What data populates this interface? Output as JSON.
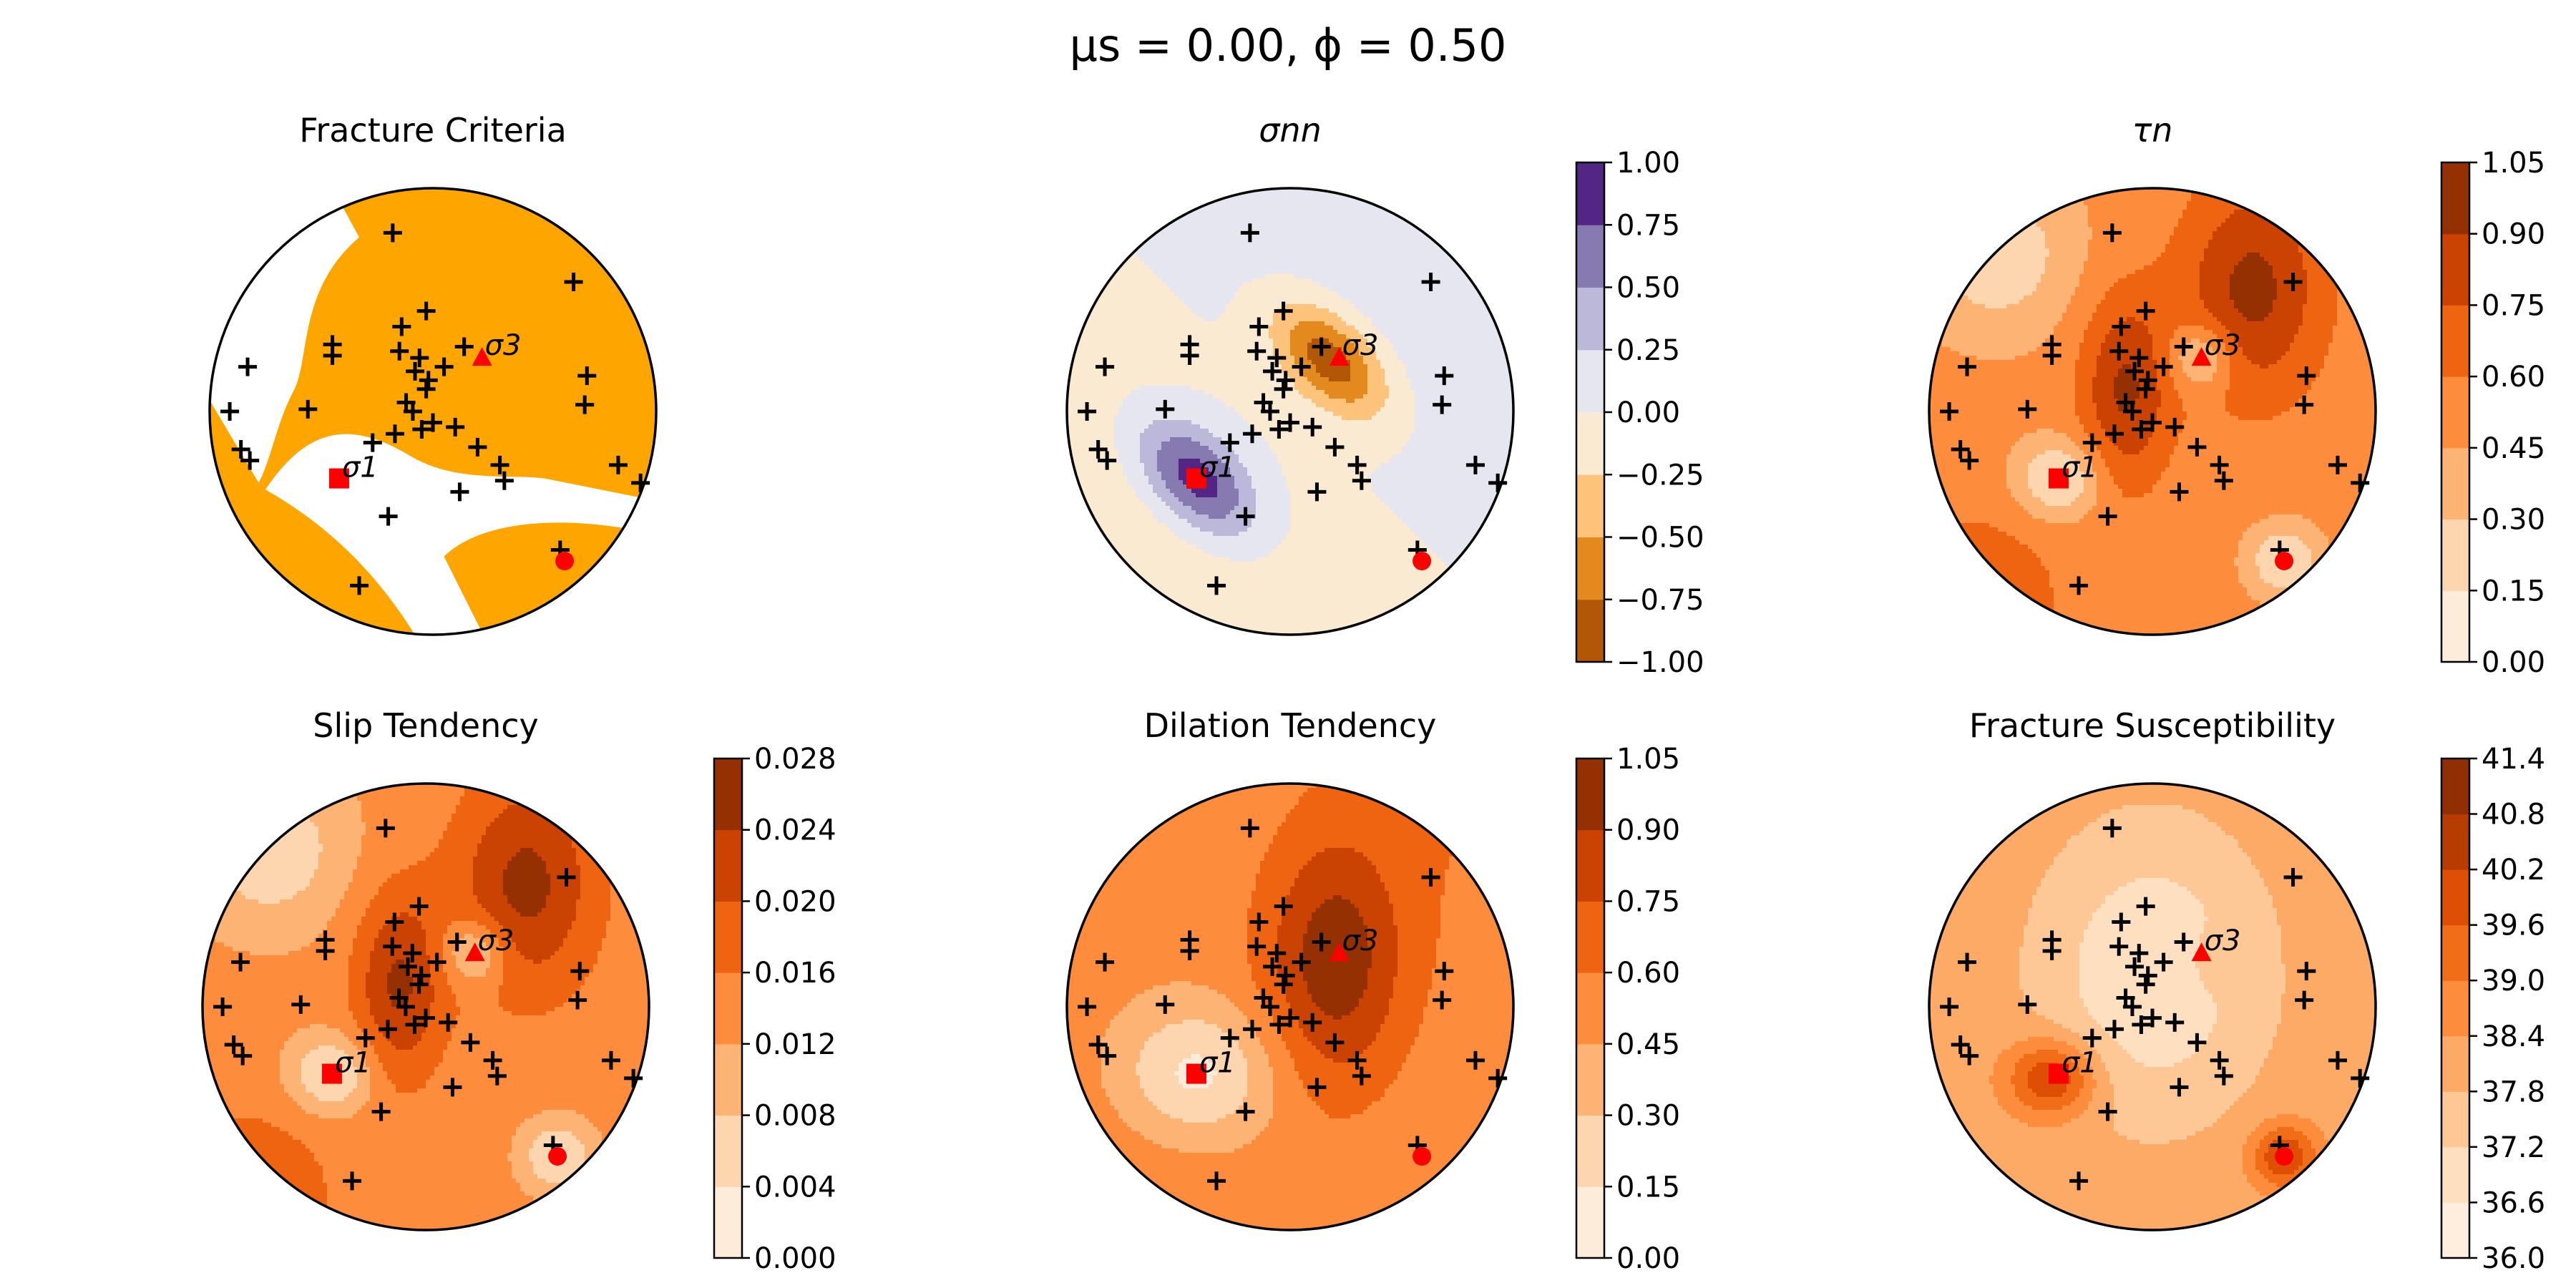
{
  "figure": {
    "suptitle": "μs = 0.00, ϕ = 0.50",
    "stress_axis_labels": {
      "sigma1": "σ1",
      "sigma3": "σ3"
    },
    "colors": {
      "fracture_fill": "#FFA500",
      "sigma_markers": "#FF0000",
      "pole_markers": "#000000",
      "purple_ramp": [
        "#3F007D",
        "#54278F",
        "#756BB1",
        "#9E9AC8",
        "#BCBDDC",
        "#DADAEB"
      ],
      "orange_ramp": [
        "#FFF5EB",
        "#FEE6CE",
        "#FDD0A2",
        "#FDAE6B",
        "#FD8D3C",
        "#F16913",
        "#D94801",
        "#A63603",
        "#7F2704"
      ]
    },
    "markers": {
      "sigma1": "square",
      "sigma3": "triangle",
      "sigma2": "circle",
      "poles": "plus"
    }
  },
  "chart_data": [
    {
      "type": "stereonet_mask",
      "title": "Fracture Criteria",
      "colorbar": null,
      "legend": null
    },
    {
      "type": "stereonet_contour",
      "title": "σnn",
      "colormap": "PuOr",
      "colorbar": {
        "min": -1.0,
        "max": 1.0,
        "levels": [
          -1.0,
          -0.75,
          -0.5,
          -0.25,
          0.0,
          0.25,
          0.5,
          0.75,
          1.0
        ],
        "tick_labels": [
          "−1.00",
          "−0.75",
          "−0.50",
          "−0.25",
          "0.00",
          "0.25",
          "0.50",
          "0.75",
          "1.00"
        ]
      }
    },
    {
      "type": "stereonet_contour",
      "title": "τn",
      "colormap": "Oranges",
      "colorbar": {
        "min": 0.0,
        "max": 1.05,
        "levels": [
          0.0,
          0.15,
          0.3,
          0.45,
          0.6,
          0.75,
          0.9,
          1.05
        ],
        "tick_labels": [
          "0.00",
          "0.15",
          "0.30",
          "0.45",
          "0.60",
          "0.75",
          "0.90",
          "1.05"
        ]
      }
    },
    {
      "type": "stereonet_contour",
      "title": "Slip Tendency",
      "colormap": "Oranges",
      "colorbar": {
        "min": 0.0,
        "max": 0.028,
        "levels": [
          0.0,
          0.004,
          0.008,
          0.012,
          0.016,
          0.02,
          0.024,
          0.028
        ],
        "tick_labels": [
          "0.000",
          "0.004",
          "0.008",
          "0.012",
          "0.016",
          "0.020",
          "0.024",
          "0.028"
        ]
      }
    },
    {
      "type": "stereonet_contour",
      "title": "Dilation Tendency",
      "colormap": "Oranges",
      "colorbar": {
        "min": 0.0,
        "max": 1.05,
        "levels": [
          0.0,
          0.15,
          0.3,
          0.45,
          0.6,
          0.75,
          0.9,
          1.05
        ],
        "tick_labels": [
          "0.00",
          "0.15",
          "0.30",
          "0.45",
          "0.60",
          "0.75",
          "0.90",
          "1.05"
        ]
      }
    },
    {
      "type": "stereonet_contour",
      "title": "Fracture Susceptibility",
      "colormap": "Oranges",
      "colorbar": {
        "min": 36.0,
        "max": 41.4,
        "levels": [
          36.0,
          36.6,
          37.2,
          37.8,
          38.4,
          39.0,
          39.6,
          40.2,
          40.8,
          41.4
        ],
        "tick_labels": [
          "36.0",
          "36.6",
          "37.2",
          "37.8",
          "38.4",
          "39.0",
          "39.6",
          "40.2",
          "40.8",
          "41.4"
        ]
      }
    }
  ]
}
